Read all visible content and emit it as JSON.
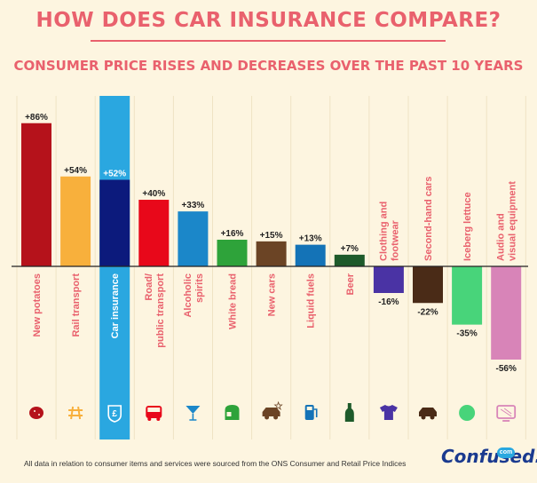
{
  "title": "HOW DOES CAR INSURANCE COMPARE?",
  "subtitle": "CONSUMER PRICE RISES AND DECREASES OVER THE PAST 10 YEARS",
  "footer": "All data in relation to consumer items and services were sourced from the ONS Consumer and Retail Price Indices",
  "logo": {
    "text": "Confused.",
    "badge": "com"
  },
  "chart_data": {
    "type": "bar",
    "categories": [
      "New potatoes",
      "Rail transport",
      "Car insurance",
      "Road/public transport",
      "Alcoholic spirits",
      "White bread",
      "New cars",
      "Liquid fuels",
      "Beer",
      "Clothing and footwear",
      "Second-hand cars",
      "Iceberg lettuce",
      "Audio and visual equipment"
    ],
    "values": [
      86,
      54,
      52,
      40,
      33,
      16,
      15,
      13,
      7,
      -16,
      -22,
      -35,
      -56
    ],
    "labels": [
      "+86%",
      "+54%",
      "+52%",
      "+40%",
      "+33%",
      "+16%",
      "+15%",
      "+13%",
      "+7%",
      "-16%",
      "-22%",
      "-35%",
      "-56%"
    ],
    "colors": [
      "#b5121b",
      "#f8b03c",
      "#0c1a7c",
      "#e8081a",
      "#1b87c9",
      "#2ea33a",
      "#6b4425",
      "#1473b7",
      "#1e5a2a",
      "#4a33a4",
      "#4a2b17",
      "#48d47a",
      "#d884b8"
    ],
    "icons": [
      "potato-icon",
      "rail-icon",
      "pound-shield-icon",
      "bus-icon",
      "cocktail-icon",
      "bread-icon",
      "car-star-icon",
      "fuel-pump-icon",
      "bottle-icon",
      "tshirt-icon",
      "car-icon",
      "lettuce-icon",
      "tv-icon"
    ],
    "highlight_index": 2,
    "highlight_color": "#2aa7e0",
    "label_color": "#e9616d",
    "ylim": [
      -56,
      86
    ],
    "grid": false,
    "xlabel": "",
    "ylabel": ""
  }
}
